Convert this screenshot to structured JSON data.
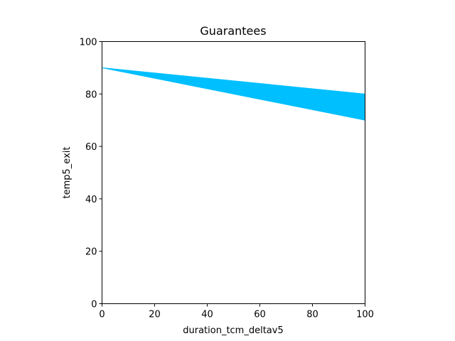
{
  "chart_data": {
    "type": "area",
    "title": "Guarantees",
    "xlabel": "duration_tcm_deltav5",
    "ylabel": "temp5_exit",
    "xlim": [
      0,
      100
    ],
    "ylim": [
      0,
      100
    ],
    "x_ticks": [
      0,
      20,
      40,
      60,
      80,
      100
    ],
    "y_ticks": [
      0,
      20,
      40,
      60,
      80,
      100
    ],
    "grid": false,
    "fill_color": "#00bfff",
    "series": [
      {
        "x": [
          0,
          100
        ],
        "lower": [
          90,
          70
        ],
        "upper": [
          90,
          80
        ]
      }
    ]
  }
}
